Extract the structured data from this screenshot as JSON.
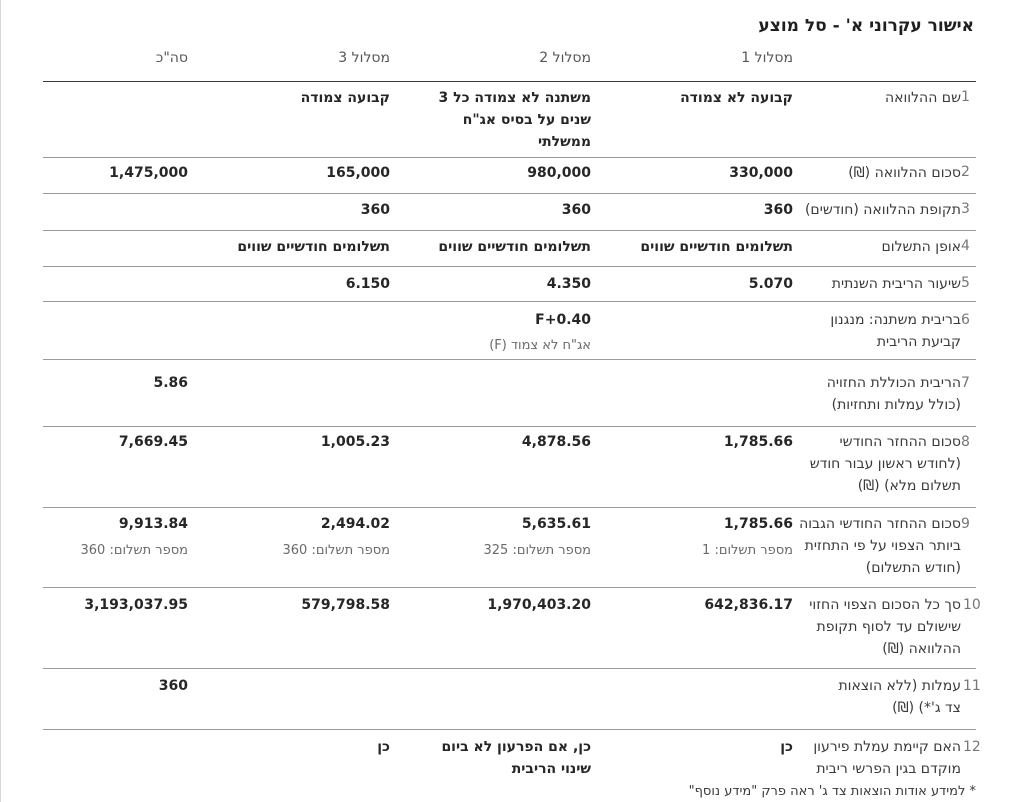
{
  "title": "אישור עקרוני א' - סל מוצע",
  "columns": [
    "מסלול 1",
    "מסלול 2",
    "מסלול 3",
    "סה\"כ"
  ],
  "rows": [
    {
      "num": "1",
      "label": "שם ההלוואה",
      "values": [
        "קבועה לא צמודה",
        "משתנה לא צמודה כל 3 שנים על בסיס אג\"ח ממשלתי",
        "קבועה צמודה",
        ""
      ]
    },
    {
      "num": "2",
      "label": "סכום ההלוואה (₪)",
      "values": [
        "330,000",
        "980,000",
        "165,000",
        "1,475,000"
      ]
    },
    {
      "num": "3",
      "label": "תקופת ההלוואה (חודשים)",
      "values": [
        "360",
        "360",
        "360",
        ""
      ]
    },
    {
      "num": "4",
      "label": "אופן התשלום",
      "values": [
        "תשלומים חודשיים שווים",
        "תשלומים חודשיים שווים",
        "תשלומים חודשיים שווים",
        ""
      ]
    },
    {
      "num": "5",
      "label": "שיעור הריבית השנתית",
      "values": [
        "5.070",
        "4.350",
        "6.150",
        ""
      ]
    },
    {
      "num": "6",
      "label": "בריבית משתנה: מנגנון קביעת הריבית",
      "values": [
        "",
        "F+0.40",
        "",
        ""
      ],
      "subs": [
        "",
        "אג\"ח לא צמוד (F)",
        "",
        ""
      ]
    },
    {
      "num": "7",
      "label": "הריבית הכוללת החזויה (כולל עמלות ותחזיות)",
      "values": [
        "",
        "",
        "",
        "5.86"
      ]
    },
    {
      "num": "8",
      "label": "סכום ההחזר החודשי (לחודש ראשון עבור חודש תשלום מלא) (₪)",
      "values": [
        "1,785.66",
        "4,878.56",
        "1,005.23",
        "7,669.45"
      ]
    },
    {
      "num": "9",
      "label": "סכום ההחזר החודשי הגבוה ביותר הצפוי על פי התחזית (חודש התשלום)",
      "values": [
        "1,785.66",
        "5,635.61",
        "2,494.02",
        "9,913.84"
      ],
      "subs": [
        "מספר תשלום: 1",
        "מספר תשלום: 325",
        "מספר תשלום: 360",
        "מספר תשלום: 360"
      ]
    },
    {
      "num": "10",
      "label": "סך כל הסכום הצפוי החזוי שישולם עד לסוף תקופת ההלוואה (₪)",
      "values": [
        "642,836.17",
        "1,970,403.20",
        "579,798.58",
        "3,193,037.95"
      ]
    },
    {
      "num": "11",
      "label": "עמלות (ללא הוצאות צד ג'*) (₪)",
      "values": [
        "",
        "",
        "",
        "360"
      ]
    },
    {
      "num": "12",
      "label": "האם קיימת עמלת פירעון מוקדם בגין הפרשי ריבית",
      "values": [
        "כן",
        "כן, אם הפרעון לא ביום שינוי הריבית",
        "כן",
        ""
      ]
    }
  ],
  "footnote": "* למידע אודות הוצאות צד ג' ראה פרק \"מידע נוסף\""
}
